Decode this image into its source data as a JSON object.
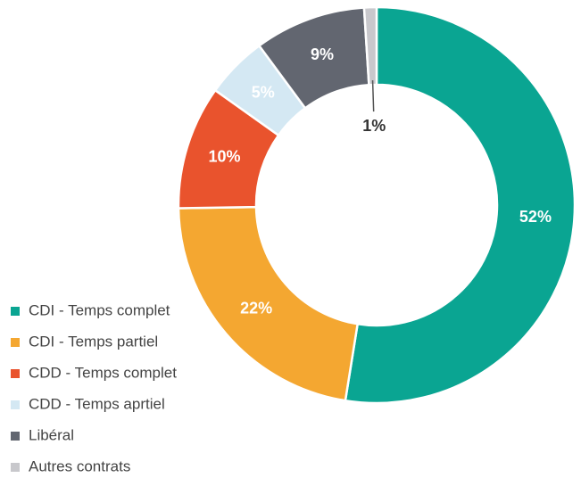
{
  "chart_data": {
    "type": "donut",
    "categories": [
      "CDI - Temps complet",
      "CDI - Temps partiel",
      "CDD - Temps complet",
      "CDD - Temps aprtiel",
      "Libéral",
      "Autres contrats"
    ],
    "values": [
      52,
      22,
      10,
      5,
      9,
      1
    ],
    "value_labels": [
      "52%",
      "22%",
      "10%",
      "5%",
      "9%",
      "1%"
    ],
    "colors": [
      "#0aa592",
      "#f4a731",
      "#e9532d",
      "#d4e8f3",
      "#626670",
      "#c8c8cc"
    ],
    "legend": "bottom-left"
  }
}
